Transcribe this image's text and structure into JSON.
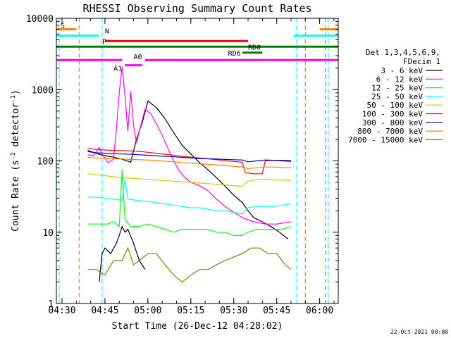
{
  "chart_data": {
    "type": "line",
    "title": "RHESSI Observing Summary Count Rates",
    "xlabel": "Start Time (26-Dec-12 04:28:02)",
    "ylabel": "Count Rate (s",
    "ylabel_sup1": "-1",
    "ylabel_mid": " detector",
    "ylabel_sup2": "-1",
    "ylabel_end": ")",
    "y_scale": "log",
    "ylim": [
      1,
      10000
    ],
    "xlim": [
      "04:28:02",
      "06:06:30"
    ],
    "x_ticks": [
      "04:30",
      "04:45",
      "05:00",
      "05:15",
      "05:30",
      "05:45",
      "06:00"
    ],
    "y_ticks": [
      "1",
      "10",
      "100",
      "1000",
      "10000"
    ],
    "legend_header": [
      "Det 1,3,4,5,6,9,",
      "FDecim 1"
    ],
    "legend_position": "right",
    "timestamp": "22-Oct-2021 00:00",
    "series": [
      {
        "name": "3 - 6 keV",
        "color": "#000000",
        "points": [
          [
            "04:39",
            140
          ],
          [
            "04:44",
            120
          ],
          [
            "04:47",
            115
          ],
          [
            "04:50",
            108
          ],
          [
            "04:52",
            102
          ],
          [
            "04:54",
            96
          ],
          [
            "04:56",
            200
          ],
          [
            "04:58",
            340
          ],
          [
            "05:00",
            690
          ],
          [
            "05:03",
            560
          ],
          [
            "05:06",
            390
          ],
          [
            "05:09",
            250
          ],
          [
            "05:12",
            165
          ],
          [
            "05:15",
            125
          ],
          [
            "05:18",
            95
          ],
          [
            "05:21",
            75
          ],
          [
            "05:24",
            58
          ],
          [
            "05:27",
            44
          ],
          [
            "05:30",
            33
          ],
          [
            "05:33",
            26
          ],
          [
            "05:35",
            20
          ],
          [
            "05:37",
            16
          ],
          [
            "05:40",
            14
          ],
          [
            "05:43",
            12
          ],
          [
            "05:46",
            10
          ],
          [
            "05:49",
            8
          ]
        ],
        "extra_segments": [
          [
            [
              "04:43",
              2
            ],
            [
              "04:44",
              5
            ],
            [
              "04:45",
              6
            ],
            [
              "04:47",
              5
            ],
            [
              "04:49",
              7
            ],
            [
              "04:50",
              9
            ],
            [
              "04:51",
              12
            ],
            [
              "04:52",
              10
            ],
            [
              "04:53",
              11
            ],
            [
              "04:55",
              7
            ],
            [
              "04:57",
              4
            ],
            [
              "04:59",
              3
            ]
          ]
        ]
      },
      {
        "name": "6 - 12 keV",
        "color": "#ff00ff",
        "points": [
          [
            "04:39",
            122
          ],
          [
            "04:41",
            118
          ],
          [
            "04:43",
            155
          ],
          [
            "04:44",
            125
          ],
          [
            "04:46",
            95
          ],
          [
            "04:48",
            105
          ],
          [
            "04:49",
            280
          ],
          [
            "04:50",
            900
          ],
          [
            "04:51",
            2100
          ],
          [
            "04:52",
            820
          ],
          [
            "04:53",
            260
          ],
          [
            "04:54",
            950
          ],
          [
            "04:55",
            320
          ],
          [
            "04:56",
            180
          ],
          [
            "04:57",
            260
          ],
          [
            "04:59",
            530
          ],
          [
            "05:01",
            460
          ],
          [
            "05:03",
            330
          ],
          [
            "05:05",
            230
          ],
          [
            "05:07",
            150
          ],
          [
            "05:09",
            100
          ],
          [
            "05:11",
            72
          ],
          [
            "05:13",
            58
          ],
          [
            "05:15",
            50
          ],
          [
            "05:18",
            45
          ],
          [
            "05:21",
            38
          ],
          [
            "05:24",
            29
          ],
          [
            "05:27",
            23
          ],
          [
            "05:30",
            19
          ],
          [
            "05:33",
            16
          ],
          [
            "05:37",
            14
          ],
          [
            "05:41",
            13
          ],
          [
            "05:45",
            13
          ],
          [
            "05:50",
            14
          ]
        ]
      },
      {
        "name": "12 - 25 keV",
        "color": "#00ff00",
        "points": [
          [
            "04:39",
            13
          ],
          [
            "04:43",
            13
          ],
          [
            "04:46",
            13
          ],
          [
            "04:48",
            14
          ],
          [
            "04:50",
            12
          ],
          [
            "04:51",
            75
          ],
          [
            "04:52",
            15
          ],
          [
            "04:54",
            12
          ],
          [
            "04:57",
            12
          ],
          [
            "05:00",
            13
          ],
          [
            "05:03",
            12
          ],
          [
            "05:06",
            11
          ],
          [
            "05:09",
            10
          ],
          [
            "05:12",
            11
          ],
          [
            "05:15",
            11
          ],
          [
            "05:18",
            11
          ],
          [
            "05:21",
            11
          ],
          [
            "05:24",
            10
          ],
          [
            "05:27",
            10
          ],
          [
            "05:30",
            9
          ],
          [
            "05:33",
            9
          ],
          [
            "05:35",
            10
          ],
          [
            "05:38",
            11
          ],
          [
            "05:41",
            11
          ],
          [
            "05:44",
            11
          ],
          [
            "05:47",
            11
          ],
          [
            "05:50",
            12
          ]
        ]
      },
      {
        "name": "25 - 50 keV",
        "color": "#00ffff",
        "points": [
          [
            "04:39",
            31
          ],
          [
            "04:42",
            31
          ],
          [
            "04:45",
            30
          ],
          [
            "04:48",
            29
          ],
          [
            "04:51",
            28
          ],
          [
            "04:52",
            55
          ],
          [
            "04:53",
            29
          ],
          [
            "04:56",
            28
          ],
          [
            "05:00",
            27
          ],
          [
            "05:03",
            26
          ],
          [
            "05:06",
            25
          ],
          [
            "05:09",
            24
          ],
          [
            "05:12",
            23
          ],
          [
            "05:15",
            22
          ],
          [
            "05:18",
            22
          ],
          [
            "05:21",
            21
          ],
          [
            "05:24",
            20
          ],
          [
            "05:27",
            20
          ],
          [
            "05:30",
            19
          ],
          [
            "05:33",
            18
          ],
          [
            "05:35",
            22
          ],
          [
            "05:38",
            23
          ],
          [
            "05:41",
            23
          ],
          [
            "05:44",
            23
          ],
          [
            "05:47",
            24
          ],
          [
            "05:50",
            25
          ]
        ]
      },
      {
        "name": "50 - 100 keV",
        "color": "#cccc00",
        "points": [
          [
            "04:39",
            66
          ],
          [
            "04:42",
            64
          ],
          [
            "04:45",
            62
          ],
          [
            "04:48",
            60
          ],
          [
            "04:51",
            58
          ],
          [
            "04:54",
            57
          ],
          [
            "04:57",
            56
          ],
          [
            "05:00",
            55
          ],
          [
            "05:03",
            54
          ],
          [
            "05:06",
            53
          ],
          [
            "05:09",
            52
          ],
          [
            "05:12",
            51
          ],
          [
            "05:15",
            50
          ],
          [
            "05:18",
            49
          ],
          [
            "05:21",
            48
          ],
          [
            "05:24",
            47
          ],
          [
            "05:27",
            46
          ],
          [
            "05:30",
            45
          ],
          [
            "05:33",
            44
          ],
          [
            "05:35",
            52
          ],
          [
            "05:38",
            55
          ],
          [
            "05:41",
            55
          ],
          [
            "05:44",
            54
          ],
          [
            "05:47",
            54
          ],
          [
            "05:50",
            53
          ]
        ]
      },
      {
        "name": "100 - 300 keV",
        "color": "#ff0000",
        "points": [
          [
            "04:39",
            150
          ],
          [
            "04:42",
            145
          ],
          [
            "04:45",
            142
          ],
          [
            "04:48",
            140
          ],
          [
            "04:51",
            140
          ],
          [
            "04:54",
            138
          ],
          [
            "04:57",
            136
          ],
          [
            "05:00",
            132
          ],
          [
            "05:03",
            128
          ],
          [
            "05:06",
            124
          ],
          [
            "05:09",
            120
          ],
          [
            "05:12",
            116
          ],
          [
            "05:15",
            113
          ],
          [
            "05:18",
            110
          ],
          [
            "05:21",
            107
          ],
          [
            "05:24",
            104
          ],
          [
            "05:27",
            101
          ],
          [
            "05:30",
            98
          ],
          [
            "05:33",
            96
          ],
          [
            "05:34",
            68
          ],
          [
            "05:37",
            66
          ],
          [
            "05:40",
            66
          ],
          [
            "05:41",
            100
          ],
          [
            "05:44",
            102
          ],
          [
            "05:47",
            100
          ],
          [
            "05:50",
            98
          ]
        ]
      },
      {
        "name": "300 - 800 keV",
        "color": "#0000cc",
        "points": [
          [
            "04:39",
            135
          ],
          [
            "04:42",
            130
          ],
          [
            "04:45",
            128
          ],
          [
            "04:48",
            126
          ],
          [
            "04:51",
            125
          ],
          [
            "04:54",
            124
          ],
          [
            "04:57",
            122
          ],
          [
            "05:00",
            120
          ],
          [
            "05:03",
            118
          ],
          [
            "05:06",
            116
          ],
          [
            "05:09",
            114
          ],
          [
            "05:12",
            112
          ],
          [
            "05:15",
            110
          ],
          [
            "05:18",
            108
          ],
          [
            "05:21",
            107
          ],
          [
            "05:24",
            106
          ],
          [
            "05:27",
            105
          ],
          [
            "05:30",
            104
          ],
          [
            "05:33",
            103
          ],
          [
            "05:35",
            97
          ],
          [
            "05:38",
            100
          ],
          [
            "05:41",
            103
          ],
          [
            "05:44",
            102
          ],
          [
            "05:47",
            102
          ],
          [
            "05:50",
            101
          ]
        ]
      },
      {
        "name": "800 - 7000 keV",
        "color": "#ff8000",
        "points": [
          [
            "04:39",
            112
          ],
          [
            "04:42",
            110
          ],
          [
            "04:45",
            108
          ],
          [
            "04:48",
            107
          ],
          [
            "04:51",
            106
          ],
          [
            "04:54",
            105
          ],
          [
            "04:57",
            104
          ],
          [
            "05:00",
            103
          ],
          [
            "05:03",
            101
          ],
          [
            "05:06",
            99
          ],
          [
            "05:09",
            97
          ],
          [
            "05:12",
            95
          ],
          [
            "05:15",
            93
          ],
          [
            "05:18",
            91
          ],
          [
            "05:21",
            89
          ],
          [
            "05:24",
            88
          ],
          [
            "05:27",
            86
          ],
          [
            "05:30",
            84
          ],
          [
            "05:33",
            82
          ],
          [
            "05:35",
            78
          ],
          [
            "05:38",
            80
          ],
          [
            "05:41",
            82
          ],
          [
            "05:44",
            82
          ],
          [
            "05:47",
            81
          ],
          [
            "05:50",
            80
          ]
        ]
      },
      {
        "name": "7000 - 15000 keV",
        "color": "#808000",
        "points": [
          [
            "04:39",
            3
          ],
          [
            "04:42",
            3
          ],
          [
            "04:45",
            2.5
          ],
          [
            "04:48",
            4
          ],
          [
            "04:51",
            4
          ],
          [
            "04:53",
            6
          ],
          [
            "04:55",
            3.5
          ],
          [
            "04:57",
            4
          ],
          [
            "05:00",
            5
          ],
          [
            "05:03",
            5
          ],
          [
            "05:06",
            3.5
          ],
          [
            "05:09",
            2.5
          ],
          [
            "05:12",
            2
          ],
          [
            "05:15",
            2.5
          ],
          [
            "05:18",
            3
          ],
          [
            "05:21",
            3
          ],
          [
            "05:24",
            3.5
          ],
          [
            "05:27",
            4
          ],
          [
            "05:30",
            4.5
          ],
          [
            "05:33",
            5
          ],
          [
            "05:36",
            6
          ],
          [
            "05:39",
            6
          ],
          [
            "05:42",
            5
          ],
          [
            "05:45",
            5
          ],
          [
            "05:48",
            3.5
          ],
          [
            "05:50",
            3
          ]
        ]
      }
    ],
    "flag_bars": [
      {
        "label": "S",
        "color": "#ff8000",
        "y": 7000,
        "segments": [
          [
            "04:28:02",
            "04:35"
          ],
          [
            "06:00",
            "06:06:30"
          ]
        ]
      },
      {
        "label": "N",
        "color": "#00ffff",
        "y": 5700,
        "segments": [
          [
            "04:28:02",
            "04:43"
          ],
          [
            "05:51",
            "06:06:30"
          ]
        ]
      },
      {
        "label": "F",
        "color": "#ff0000",
        "y": 4800,
        "segments": [
          [
            "04:45",
            "05:35"
          ]
        ]
      },
      {
        "label": "",
        "color": "#008000",
        "y": 4000,
        "segments": [
          [
            "04:28:02",
            "06:06:30"
          ]
        ]
      },
      {
        "label": "RD0",
        "color": "#008000",
        "y": 4000,
        "segments": []
      },
      {
        "label": "RD6",
        "color": "#008000",
        "y": 3300,
        "segments": [
          [
            "05:33",
            "05:40"
          ]
        ]
      },
      {
        "label": "",
        "color": "#ff00ff",
        "y": 2600,
        "segments": [
          [
            "04:28:02",
            "04:51"
          ],
          [
            "04:59",
            "06:06:30"
          ]
        ]
      },
      {
        "label": "A1",
        "color": "#ff00ff",
        "y": 2200,
        "segments": [
          [
            "04:52",
            "04:58"
          ]
        ]
      },
      {
        "label": "A0",
        "color": "#ff00ff",
        "y": 2600,
        "segments": []
      }
    ],
    "vlines": [
      {
        "t": "04:36",
        "color": "#ff8000"
      },
      {
        "t": "04:44",
        "color": "#00ffff"
      },
      {
        "t": "05:52",
        "color": "#00ffff"
      },
      {
        "t": "05:55",
        "color": "#ff8000"
      },
      {
        "t": "06:02",
        "color": "#ff8000"
      },
      {
        "t": "06:03",
        "color": "#00ffff"
      },
      {
        "t": "04:29",
        "color": "#00ffff"
      }
    ]
  }
}
